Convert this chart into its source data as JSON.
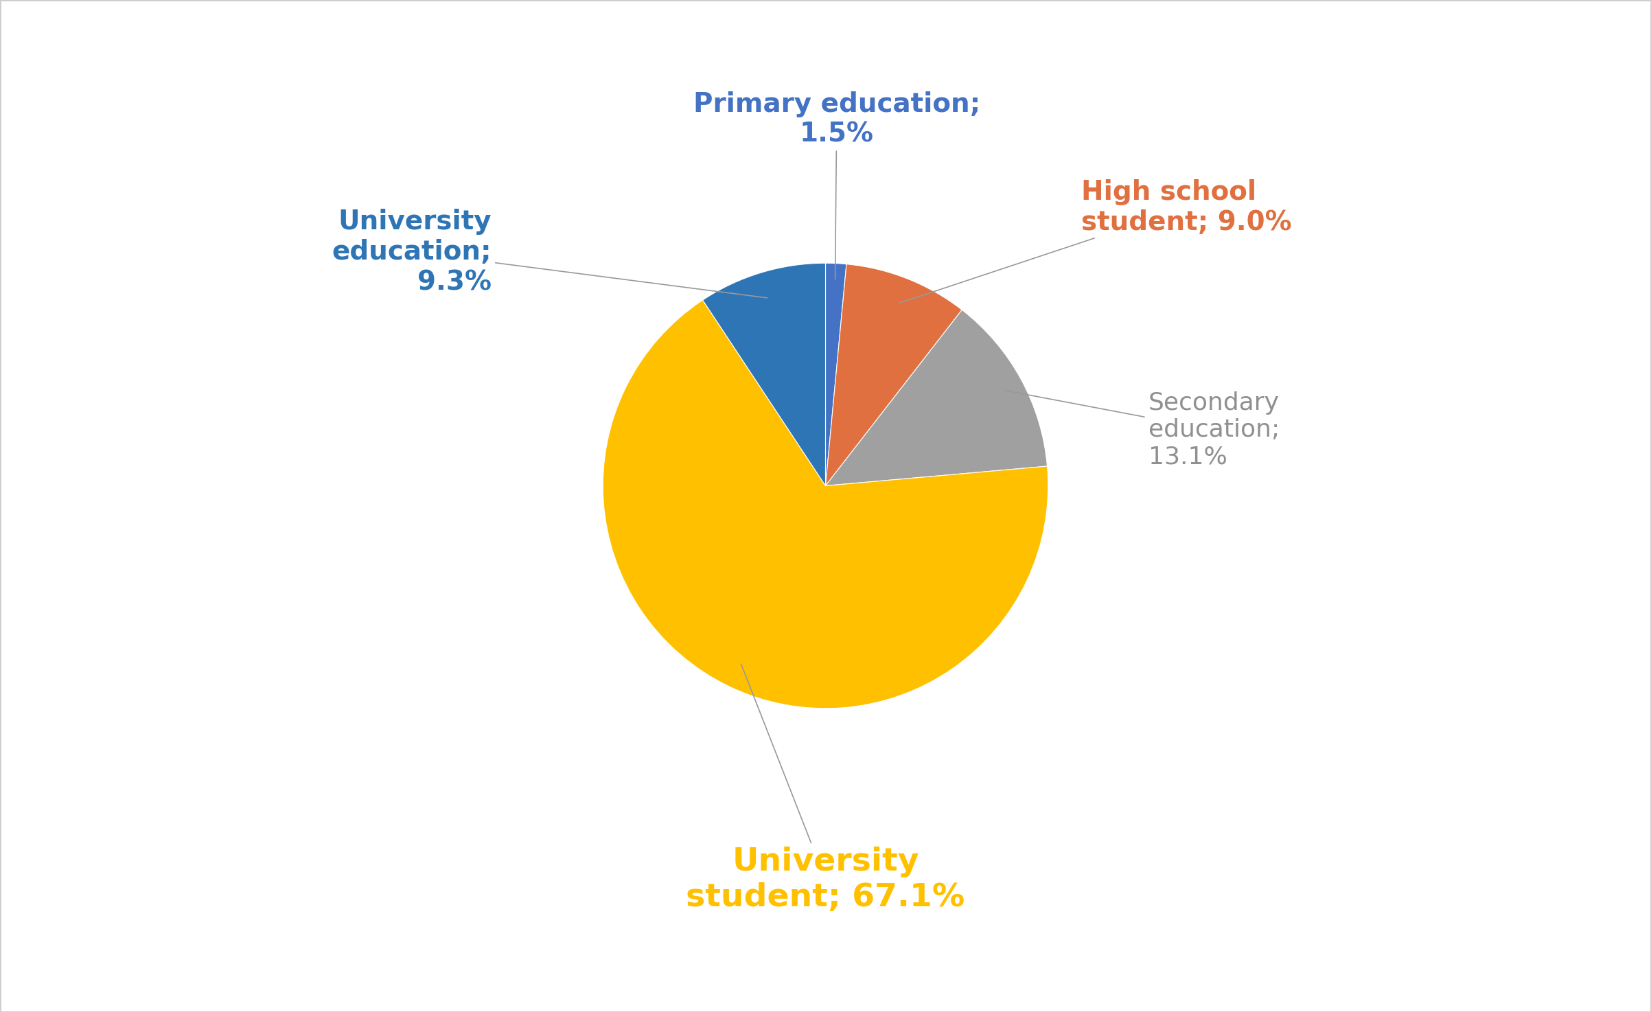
{
  "labels": [
    "Primary education",
    "High school student",
    "Secondary education",
    "University student",
    "University education"
  ],
  "values": [
    1.5,
    9.0,
    13.1,
    67.1,
    9.3
  ],
  "colors": [
    "#4472C4",
    "#E07040",
    "#A0A0A0",
    "#FFC000",
    "#2E75B6"
  ],
  "label_colors": [
    "#4472C4",
    "#E07040",
    "#909090",
    "#FFC000",
    "#2E75B6"
  ],
  "startangle": 90,
  "background_color": "#ffffff",
  "border_color": "#cccccc"
}
